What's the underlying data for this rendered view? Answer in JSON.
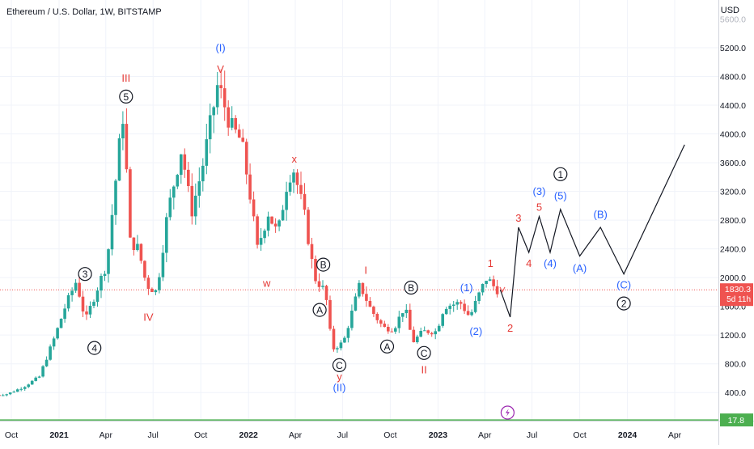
{
  "header": {
    "title": "Ethereum / U.S. Dollar, 1W, BITSTAMP",
    "unit": "USD"
  },
  "price_badge": {
    "price": "1830.3",
    "countdown": "5d 11h"
  },
  "baseline_badge": {
    "value": "17.8"
  },
  "event_icon": "lightning-icon",
  "colors": {
    "up": "#26a69a",
    "down": "#ef5350",
    "blue_label": "#2962ff",
    "red_label": "#e53935",
    "black_label": "#131722",
    "baseline": "#4caf50",
    "event": "#9c27b0"
  },
  "chart_data": {
    "type": "candlestick",
    "title": "Ethereum / U.S. Dollar, 1W, BITSTAMP",
    "ylabel": "USD",
    "y_ticks": [
      400,
      800,
      1200,
      1600,
      2000,
      2400,
      2800,
      3200,
      3600,
      4000,
      4400,
      4800,
      5200
    ],
    "x_ticks": [
      "Oct",
      "2021",
      "Apr",
      "Jul",
      "Oct",
      "2022",
      "Apr",
      "Jul",
      "Oct",
      "2023",
      "Apr",
      "Jul",
      "Oct",
      "2024",
      "Apr"
    ],
    "x_tick_dates": [
      "2020-10-01",
      "2021-01-01",
      "2021-04-01",
      "2021-07-01",
      "2021-10-01",
      "2022-01-01",
      "2022-04-01",
      "2022-07-01",
      "2022-10-01",
      "2023-01-01",
      "2023-04-01",
      "2023-07-01",
      "2023-10-01",
      "2024-01-01",
      "2024-04-01"
    ],
    "last_price": 1830.3,
    "baseline_value": 17.8,
    "price_path": [
      [
        "2020-09-01",
        360
      ],
      [
        "2020-10-01",
        380
      ],
      [
        "2020-11-01",
        480
      ],
      [
        "2020-12-01",
        620
      ],
      [
        "2021-01-01",
        1200
      ],
      [
        "2021-01-20",
        1600
      ],
      [
        "2021-02-10",
        1950
      ],
      [
        "2021-02-28",
        1400
      ],
      [
        "2021-03-20",
        1800
      ],
      [
        "2021-04-10",
        2200
      ],
      [
        "2021-05-05",
        3900
      ],
      [
        "2021-05-12",
        4300
      ],
      [
        "2021-05-25",
        2500
      ],
      [
        "2021-06-10",
        2400
      ],
      [
        "2021-06-25",
        1900
      ],
      [
        "2021-07-15",
        1800
      ],
      [
        "2021-08-05",
        2900
      ],
      [
        "2021-09-01",
        3800
      ],
      [
        "2021-09-20",
        2900
      ],
      [
        "2021-10-10",
        3500
      ],
      [
        "2021-11-10",
        4700
      ],
      [
        "2021-12-05",
        4100
      ],
      [
        "2021-12-25",
        3900
      ],
      [
        "2022-01-10",
        3200
      ],
      [
        "2022-01-25",
        2400
      ],
      [
        "2022-02-15",
        2900
      ],
      [
        "2022-03-05",
        2600
      ],
      [
        "2022-03-25",
        3400
      ],
      [
        "2022-04-05",
        3500
      ],
      [
        "2022-04-25",
        2900
      ],
      [
        "2022-05-15",
        2000
      ],
      [
        "2022-06-05",
        1800
      ],
      [
        "2022-06-18",
        1000
      ],
      [
        "2022-07-10",
        1100
      ],
      [
        "2022-08-10",
        1900
      ],
      [
        "2022-09-01",
        1550
      ],
      [
        "2022-09-25",
        1300
      ],
      [
        "2022-10-15",
        1290
      ],
      [
        "2022-11-05",
        1600
      ],
      [
        "2022-11-20",
        1100
      ],
      [
        "2022-12-10",
        1250
      ],
      [
        "2023-01-05",
        1250
      ],
      [
        "2023-01-20",
        1600
      ],
      [
        "2023-02-20",
        1650
      ],
      [
        "2023-03-10",
        1450
      ],
      [
        "2023-03-30",
        1800
      ],
      [
        "2023-04-12",
        2000
      ],
      [
        "2023-04-25",
        1880
      ],
      [
        "2023-05-01",
        1830
      ]
    ],
    "projection_path": [
      [
        "2023-05-01",
        1830
      ],
      [
        "2023-05-20",
        1450
      ],
      [
        "2023-06-05",
        2700
      ],
      [
        "2023-06-25",
        2350
      ],
      [
        "2023-07-15",
        2850
      ],
      [
        "2023-08-05",
        2350
      ],
      [
        "2023-08-25",
        2950
      ],
      [
        "2023-10-01",
        2300
      ],
      [
        "2023-11-10",
        2700
      ],
      [
        "2023-12-25",
        2050
      ],
      [
        "2024-04-20",
        3850
      ]
    ],
    "annotations": [
      {
        "text": "(I)",
        "color": "blue",
        "date": "2021-11-08",
        "price": 5200
      },
      {
        "text": "V",
        "color": "red",
        "date": "2021-11-08",
        "price": 4900
      },
      {
        "text": "III",
        "color": "red",
        "date": "2021-05-10",
        "price": 4780
      },
      {
        "text": "5",
        "color": "black",
        "circled": true,
        "date": "2021-05-10",
        "price": 4520
      },
      {
        "text": "3",
        "color": "black",
        "circled": true,
        "date": "2021-02-20",
        "price": 2050
      },
      {
        "text": "4",
        "color": "black",
        "circled": true,
        "date": "2021-03-10",
        "price": 1020
      },
      {
        "text": "IV",
        "color": "red",
        "date": "2021-06-22",
        "price": 1450
      },
      {
        "text": "x",
        "color": "red",
        "date": "2022-03-30",
        "price": 3650
      },
      {
        "text": "w",
        "color": "red",
        "date": "2022-02-05",
        "price": 1920
      },
      {
        "text": "B",
        "color": "black",
        "circled": true,
        "date": "2022-05-25",
        "price": 2180
      },
      {
        "text": "A",
        "color": "black",
        "circled": true,
        "date": "2022-05-18",
        "price": 1550
      },
      {
        "text": "C",
        "color": "black",
        "circled": true,
        "date": "2022-06-25",
        "price": 780
      },
      {
        "text": "y",
        "color": "red",
        "date": "2022-06-25",
        "price": 620
      },
      {
        "text": "(II)",
        "color": "blue",
        "date": "2022-06-25",
        "price": 470
      },
      {
        "text": "I",
        "color": "red",
        "date": "2022-08-15",
        "price": 2100
      },
      {
        "text": "A",
        "color": "black",
        "circled": true,
        "date": "2022-09-25",
        "price": 1040
      },
      {
        "text": "B",
        "color": "black",
        "circled": true,
        "date": "2022-11-10",
        "price": 1860
      },
      {
        "text": "C",
        "color": "black",
        "circled": true,
        "date": "2022-12-05",
        "price": 950
      },
      {
        "text": "II",
        "color": "red",
        "date": "2022-12-05",
        "price": 720
      },
      {
        "text": "(1)",
        "color": "blue",
        "date": "2023-02-25",
        "price": 1860
      },
      {
        "text": "(2)",
        "color": "blue",
        "date": "2023-03-15",
        "price": 1250
      },
      {
        "text": "1",
        "color": "red",
        "date": "2023-04-12",
        "price": 2200
      },
      {
        "text": "2",
        "color": "red",
        "date": "2023-05-20",
        "price": 1300
      },
      {
        "text": "3",
        "color": "red",
        "date": "2023-06-05",
        "price": 2830
      },
      {
        "text": "4",
        "color": "red",
        "date": "2023-06-25",
        "price": 2200
      },
      {
        "text": "5",
        "color": "red",
        "date": "2023-07-15",
        "price": 2980
      },
      {
        "text": "(3)",
        "color": "blue",
        "date": "2023-07-15",
        "price": 3200
      },
      {
        "text": "(4)",
        "color": "blue",
        "date": "2023-08-05",
        "price": 2200
      },
      {
        "text": "(5)",
        "color": "blue",
        "date": "2023-08-25",
        "price": 3140
      },
      {
        "text": "1",
        "color": "black",
        "circled": true,
        "date": "2023-08-25",
        "price": 3440
      },
      {
        "text": "(A)",
        "color": "blue",
        "date": "2023-10-01",
        "price": 2130
      },
      {
        "text": "(B)",
        "color": "blue",
        "date": "2023-11-10",
        "price": 2880
      },
      {
        "text": "(C)",
        "color": "blue",
        "date": "2023-12-25",
        "price": 1900
      },
      {
        "text": "2",
        "color": "black",
        "circled": true,
        "date": "2023-12-25",
        "price": 1640
      }
    ]
  }
}
